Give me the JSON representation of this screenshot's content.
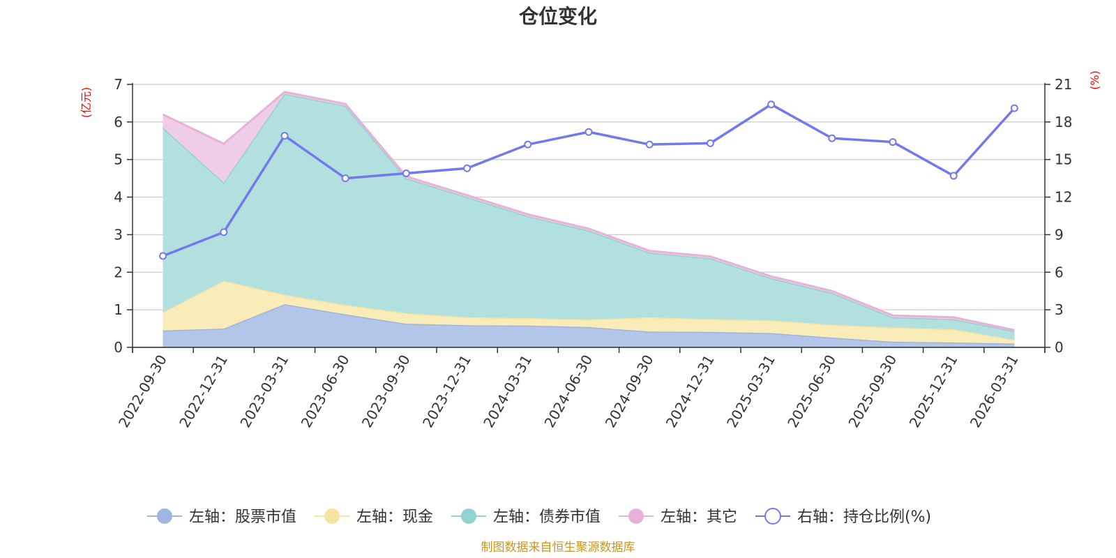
{
  "chart_data": {
    "type": "area",
    "title": "仓位变化",
    "left_unit": "(亿元)",
    "right_unit": "(%)",
    "categories": [
      "2022-09-30",
      "2022-12-31",
      "2023-03-31",
      "2023-06-30",
      "2023-09-30",
      "2023-12-31",
      "2024-03-31",
      "2024-06-30",
      "2024-09-30",
      "2024-12-31",
      "2025-03-31",
      "2025-06-30",
      "2025-09-30",
      "2025-12-31",
      "2026-03-31"
    ],
    "left_axis": {
      "min": 0,
      "max": 7,
      "ticks": [
        "0",
        "1",
        "2",
        "3",
        "4",
        "5",
        "6",
        "7"
      ]
    },
    "right_axis": {
      "min": 0,
      "max": 21,
      "ticks": [
        "0",
        "3",
        "6",
        "9",
        "12",
        "15",
        "18",
        "21"
      ]
    },
    "stacked_series": [
      {
        "name": "左轴：股票市值",
        "color": "#9db5e0",
        "fill": "#b3c6e9",
        "values": [
          0.45,
          0.5,
          1.15,
          0.88,
          0.63,
          0.59,
          0.58,
          0.54,
          0.42,
          0.41,
          0.38,
          0.26,
          0.15,
          0.13,
          0.1
        ]
      },
      {
        "name": "左轴：现金",
        "color": "#f7e4a0",
        "fill": "#faecb9",
        "values": [
          0.48,
          1.27,
          0.25,
          0.25,
          0.28,
          0.21,
          0.2,
          0.2,
          0.38,
          0.34,
          0.34,
          0.34,
          0.38,
          0.35,
          0.1
        ]
      },
      {
        "name": "左轴：债券市值",
        "color": "#92d2d1",
        "fill": "#b2e0df",
        "values": [
          4.92,
          2.62,
          5.35,
          5.3,
          3.59,
          3.2,
          2.71,
          2.37,
          1.72,
          1.62,
          1.12,
          0.85,
          0.27,
          0.27,
          0.23
        ]
      },
      {
        "name": "左轴：其它",
        "color": "#e6b2d8",
        "fill": "#efcde6",
        "values": [
          0.35,
          1.03,
          0.05,
          0.05,
          0.05,
          0.05,
          0.05,
          0.05,
          0.05,
          0.05,
          0.05,
          0.05,
          0.05,
          0.05,
          0.03
        ]
      }
    ],
    "line_series": {
      "name": "右轴：持仓比例(%)",
      "color": "#7278ee",
      "values": [
        7.3,
        9.2,
        16.9,
        13.5,
        13.9,
        14.3,
        16.2,
        17.2,
        16.2,
        16.3,
        19.4,
        16.7,
        16.4,
        13.7,
        19.1
      ]
    },
    "source": "制图数据来自恒生聚源数据库"
  }
}
